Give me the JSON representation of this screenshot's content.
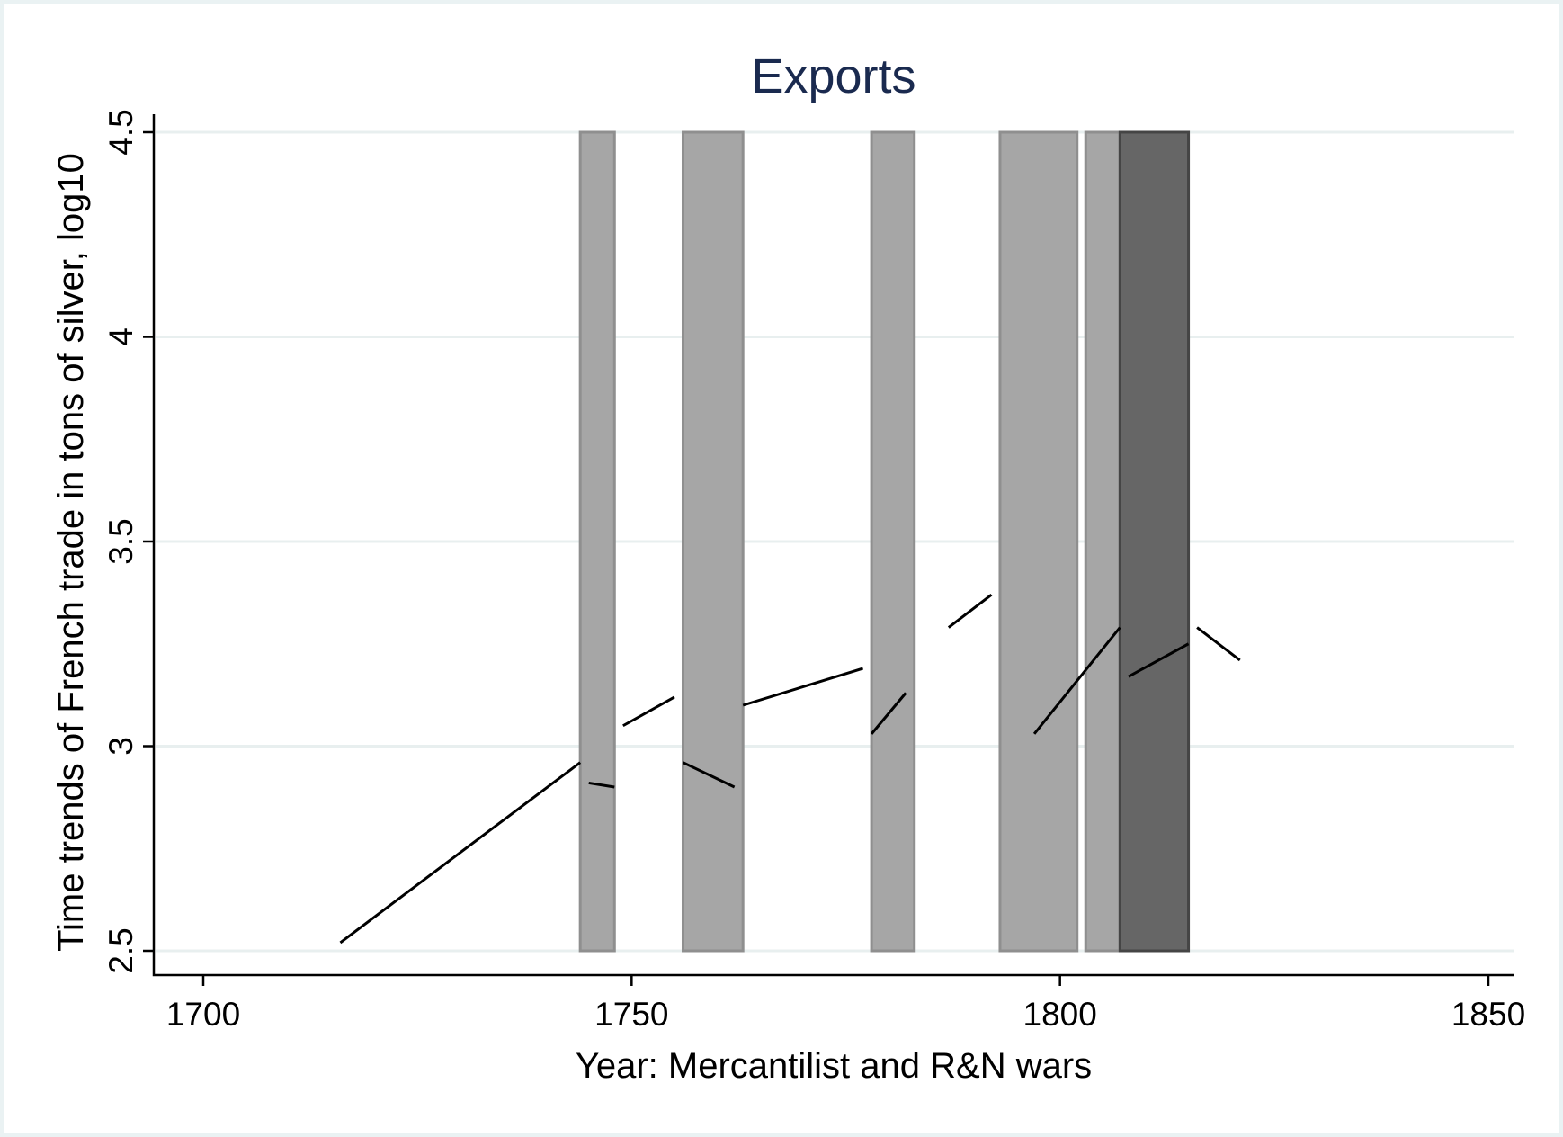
{
  "chart_data": {
    "type": "line",
    "title": "Exports",
    "xlabel": "Year: Mercantilist and R&N wars",
    "ylabel": "Time trends of French trade in tons of silver, log10",
    "xlim": [
      1694,
      1853
    ],
    "ylim": [
      2.44,
      4.5
    ],
    "xticks": [
      1700,
      1750,
      1800,
      1850
    ],
    "yticks": [
      2.5,
      3,
      3.5,
      4,
      4.5
    ],
    "ytick_labels": [
      "2.5",
      "3",
      "3.5",
      "4",
      "4.5"
    ],
    "grid": true,
    "war_periods": [
      {
        "start": 1744,
        "end": 1748,
        "shade": "light"
      },
      {
        "start": 1756,
        "end": 1763,
        "shade": "light"
      },
      {
        "start": 1778,
        "end": 1783,
        "shade": "light"
      },
      {
        "start": 1793,
        "end": 1802,
        "shade": "light"
      },
      {
        "start": 1803,
        "end": 1807,
        "shade": "light"
      },
      {
        "start": 1807,
        "end": 1815,
        "shade": "dark"
      }
    ],
    "shade_colors": {
      "light": "#a6a6a6",
      "dark": "#666666",
      "light_edge": "#8f8f8f",
      "dark_edge": "#454545"
    },
    "segments": [
      {
        "x": [
          1716,
          1744
        ],
        "y": [
          2.52,
          2.96
        ]
      },
      {
        "x": [
          1745,
          1748
        ],
        "y": [
          2.91,
          2.9
        ]
      },
      {
        "x": [
          1749,
          1755
        ],
        "y": [
          3.05,
          3.12
        ]
      },
      {
        "x": [
          1756,
          1762
        ],
        "y": [
          2.96,
          2.9
        ]
      },
      {
        "x": [
          1763,
          1777
        ],
        "y": [
          3.1,
          3.19
        ]
      },
      {
        "x": [
          1778,
          1782
        ],
        "y": [
          3.03,
          3.13
        ]
      },
      {
        "x": [
          1787,
          1792
        ],
        "y": [
          3.29,
          3.37
        ]
      },
      {
        "x": [
          1797,
          1807
        ],
        "y": [
          3.03,
          3.29
        ]
      },
      {
        "x": [
          1808,
          1815
        ],
        "y": [
          3.17,
          3.25
        ]
      },
      {
        "x": [
          1816,
          1821
        ],
        "y": [
          3.29,
          3.21
        ]
      }
    ]
  }
}
